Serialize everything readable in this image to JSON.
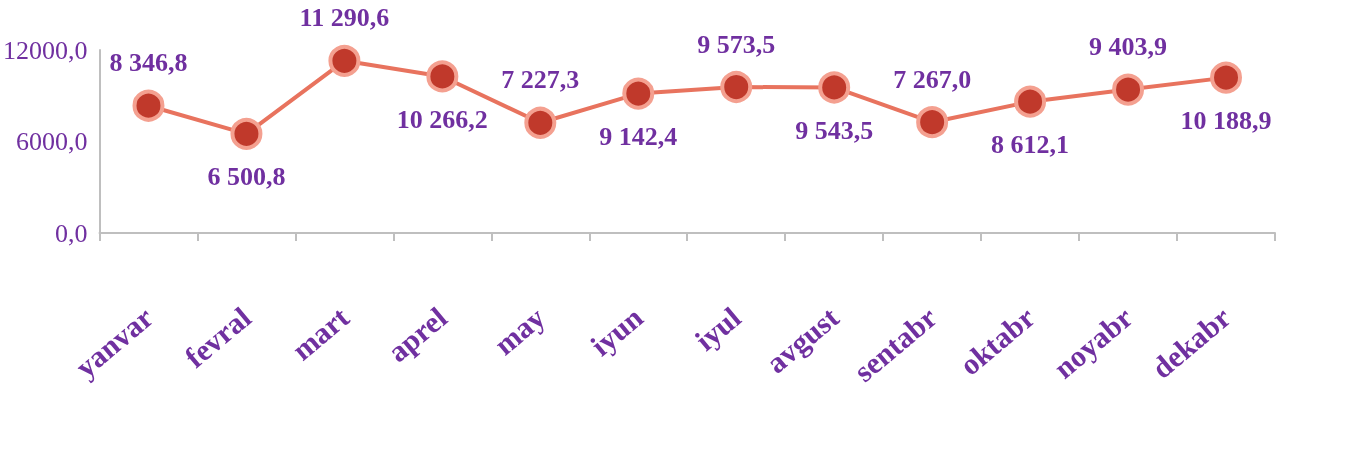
{
  "chart_data": {
    "type": "line",
    "categories": [
      "yanvar",
      "fevral",
      "mart",
      "aprel",
      "may",
      "iyun",
      "iyul",
      "avgust",
      "sentabr",
      "oktabr",
      "noyabr",
      "dekabr"
    ],
    "series": [
      {
        "color": "#e8735e",
        "values": [
          8346.8,
          6500.8,
          11290.6,
          10266.2,
          7227.3,
          9142.4,
          9573.5,
          9543.5,
          7267.0,
          8612.1,
          9403.9,
          10188.9
        ],
        "value_labels": [
          "8 346,8",
          "6 500,8",
          "11 290,6",
          "10 266,2",
          "7 227,3",
          "9 142,4",
          "9 573,5",
          "9 543,5",
          "7 267,0",
          "8 612,1",
          "9 403,9",
          "10 188,9"
        ]
      }
    ],
    "ylim": [
      0,
      12000
    ],
    "yticks": [
      {
        "value": 0,
        "label": "0,0"
      },
      {
        "value": 6000,
        "label": "6000,0"
      },
      {
        "value": 12000,
        "label": "12000,0"
      }
    ],
    "grid": false,
    "marker": "circle",
    "line_style": "solid"
  }
}
